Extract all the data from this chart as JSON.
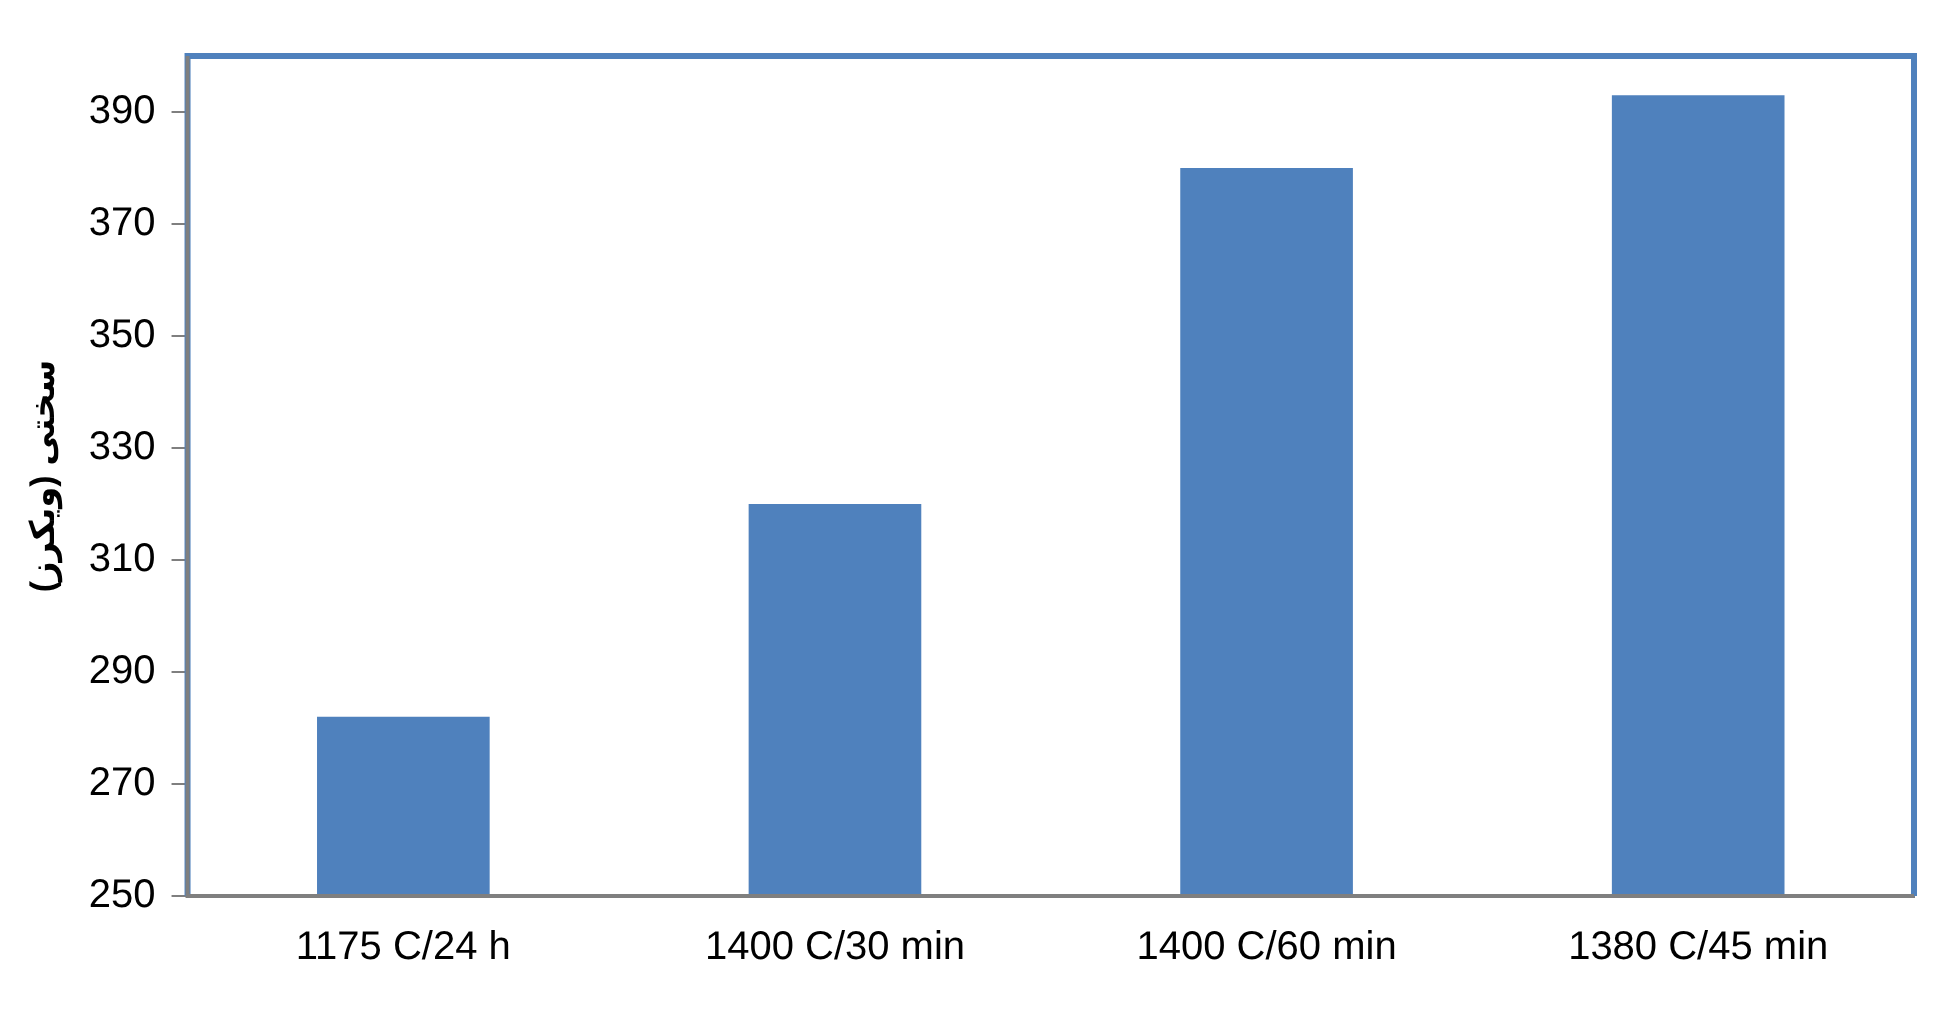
{
  "chart_data": {
    "type": "bar",
    "ylabel": "سختی (ویکرز)",
    "categories": [
      "1175 C/24 h",
      "1400 C/30 min",
      "1400 C/60 min",
      "1380 C/45 min"
    ],
    "values": [
      282,
      320,
      380,
      393
    ],
    "color": "#4f81bd",
    "ylim": [
      250,
      400
    ],
    "yticks": [
      250,
      270,
      290,
      310,
      330,
      350,
      370,
      390
    ],
    "grid": false,
    "legend": false
  }
}
